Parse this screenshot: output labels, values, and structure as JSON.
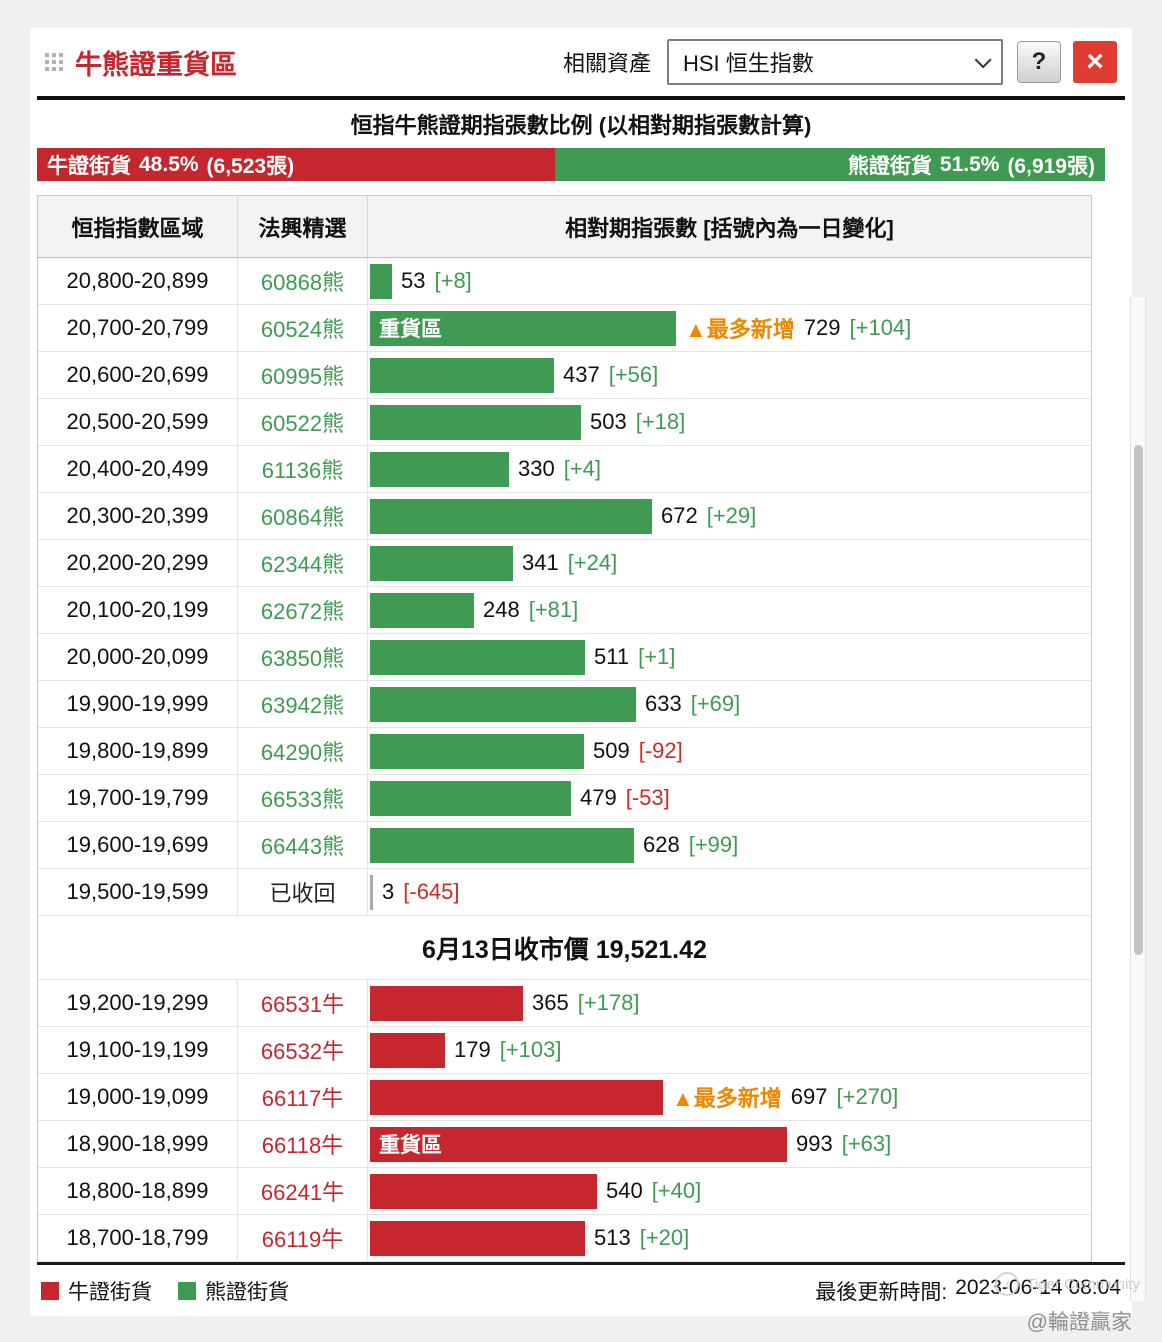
{
  "colors": {
    "bull_red": "#c6262e",
    "bear_green": "#3f9a52",
    "most_new_orange": "#ef8800",
    "negative_red": "#cf2b24",
    "close_button_red": "#df3b30",
    "recalled_gray": "#a9a9a9"
  },
  "window": {
    "title": "牛熊證重貨區",
    "related_asset_label": "相關資產",
    "asset_selected": "HSI 恒生指數",
    "help_label": "?",
    "close_label": "×"
  },
  "ratio": {
    "title": "恒指牛熊證期指張數比例 (以相對期指張數計算)",
    "bull": {
      "label": "牛證街貨",
      "pct": "48.5%",
      "count": "(6,523張)",
      "pct_value": 48.5
    },
    "bear": {
      "label": "熊證街貨",
      "pct": "51.5%",
      "count": "(6,919張)",
      "pct_value": 51.5
    }
  },
  "table": {
    "headers": [
      "恒指指數區域",
      "法興精選",
      "相對期指張數 [括號內為一日變化]"
    ],
    "heavy_label": "重貨區",
    "most_new_label": "▲最多新增",
    "bear_rows": [
      {
        "range": "20,800-20,899",
        "code": "60868熊",
        "value": 53,
        "change": "+8"
      },
      {
        "range": "20,700-20,799",
        "code": "60524熊",
        "value": 729,
        "change": "+104",
        "heavy": true,
        "most_new": true
      },
      {
        "range": "20,600-20,699",
        "code": "60995熊",
        "value": 437,
        "change": "+56"
      },
      {
        "range": "20,500-20,599",
        "code": "60522熊",
        "value": 503,
        "change": "+18"
      },
      {
        "range": "20,400-20,499",
        "code": "61136熊",
        "value": 330,
        "change": "+4"
      },
      {
        "range": "20,300-20,399",
        "code": "60864熊",
        "value": 672,
        "change": "+29"
      },
      {
        "range": "20,200-20,299",
        "code": "62344熊",
        "value": 341,
        "change": "+24"
      },
      {
        "range": "20,100-20,199",
        "code": "62672熊",
        "value": 248,
        "change": "+81"
      },
      {
        "range": "20,000-20,099",
        "code": "63850熊",
        "value": 511,
        "change": "+1"
      },
      {
        "range": "19,900-19,999",
        "code": "63942熊",
        "value": 633,
        "change": "+69"
      },
      {
        "range": "19,800-19,899",
        "code": "64290熊",
        "value": 509,
        "change": "-92"
      },
      {
        "range": "19,700-19,799",
        "code": "66533熊",
        "value": 479,
        "change": "-53"
      },
      {
        "range": "19,600-19,699",
        "code": "66443熊",
        "value": 628,
        "change": "+99"
      },
      {
        "range": "19,500-19,599",
        "code": "已收回",
        "value": 3,
        "change": "-645",
        "recalled": true
      }
    ],
    "close_divider": "6月13日收市價 19,521.42",
    "bull_rows": [
      {
        "range": "19,200-19,299",
        "code": "66531牛",
        "value": 365,
        "change": "+178"
      },
      {
        "range": "19,100-19,199",
        "code": "66532牛",
        "value": 179,
        "change": "+103"
      },
      {
        "range": "19,000-19,099",
        "code": "66117牛",
        "value": 697,
        "change": "+270",
        "most_new": true
      },
      {
        "range": "18,900-18,999",
        "code": "66118牛",
        "value": 993,
        "change": "+63",
        "heavy": true
      },
      {
        "range": "18,800-18,899",
        "code": "66241牛",
        "value": 540,
        "change": "+40"
      },
      {
        "range": "18,700-18,799",
        "code": "66119牛",
        "value": 513,
        "change": "+20"
      }
    ]
  },
  "footer": {
    "legend": [
      {
        "label": "牛證街貨"
      },
      {
        "label": "熊證街貨"
      }
    ],
    "updated_label": "最後更新時間:",
    "updated_value": "2023-06-14 08:04",
    "watermark_community": "Tiger Community",
    "watermark_handle": "@輪證贏家"
  },
  "chart_data": {
    "type": "bar",
    "orientation": "horizontal",
    "title": "恒指牛熊證期指張數比例 (以相對期指張數計算)",
    "xlim": [
      0,
      1000
    ],
    "close_price_note": "6月13日收市價 19,521.42",
    "summary": {
      "bull_pct": 48.5,
      "bull_count": 6523,
      "bear_pct": 51.5,
      "bear_count": 6919
    },
    "series": [
      {
        "name": "熊證街貨",
        "categories": [
          "20,800-20,899",
          "20,700-20,799",
          "20,600-20,699",
          "20,500-20,599",
          "20,400-20,499",
          "20,300-20,399",
          "20,200-20,299",
          "20,100-20,199",
          "20,000-20,099",
          "19,900-19,999",
          "19,800-19,899",
          "19,700-19,799",
          "19,600-19,699",
          "19,500-19,599"
        ],
        "values": [
          53,
          729,
          437,
          503,
          330,
          672,
          341,
          248,
          511,
          633,
          509,
          479,
          628,
          3
        ],
        "day_changes": [
          8,
          104,
          56,
          18,
          4,
          29,
          24,
          81,
          1,
          69,
          -92,
          -53,
          99,
          -645
        ]
      },
      {
        "name": "牛證街貨",
        "categories": [
          "19,200-19,299",
          "19,100-19,199",
          "19,000-19,099",
          "18,900-18,999",
          "18,800-18,899",
          "18,700-18,799"
        ],
        "values": [
          365,
          179,
          697,
          993,
          540,
          513
        ],
        "day_changes": [
          178,
          103,
          270,
          63,
          40,
          20
        ]
      }
    ]
  }
}
